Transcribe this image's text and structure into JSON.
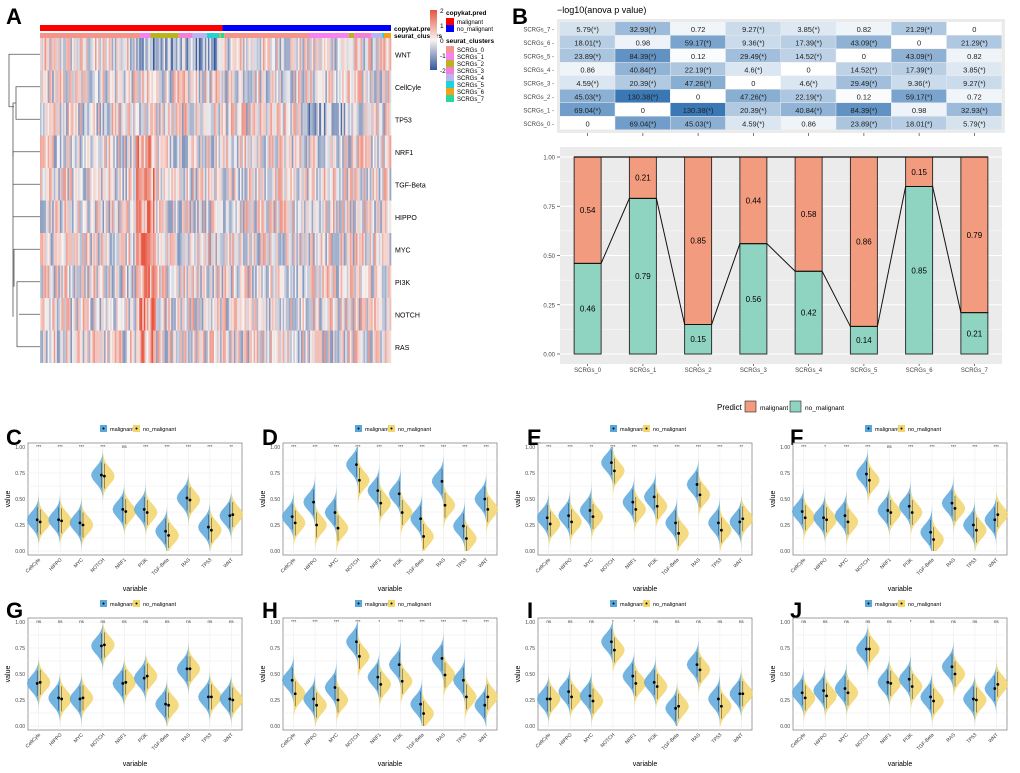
{
  "panels": {
    "A": "A",
    "B": "B",
    "C": "C",
    "D": "D",
    "E": "E",
    "F": "F",
    "G": "G",
    "H": "H",
    "I": "I",
    "J": "J"
  },
  "heatmap": {
    "rows": [
      "WNT",
      "CellCyle",
      "TP53",
      "NRF1",
      "TGF-Beta",
      "HIPPO",
      "MYC",
      "PI3K",
      "NOTCH",
      "RAS"
    ],
    "annotation_labels": [
      "copykat.pred",
      "seurat_clusters"
    ],
    "scale": {
      "max": 2,
      "min": -2,
      "ticks": [
        "2",
        "1",
        "0",
        "-1",
        "-2"
      ]
    },
    "legend_copykat_title": "copykat.pred",
    "legend_copykat": [
      {
        "label": "malignant",
        "color": "#ff0000"
      },
      {
        "label": "no_malignant",
        "color": "#0000ff"
      }
    ],
    "legend_clusters_title": "seurat_clusters",
    "legend_clusters": [
      {
        "label": "SCRGs_0",
        "color": "#f4948a"
      },
      {
        "label": "SCRGs_1",
        "color": "#f781f1"
      },
      {
        "label": "SCRGs_2",
        "color": "#b9b41c"
      },
      {
        "label": "SCRGs_3",
        "color": "#f47fd6"
      },
      {
        "label": "SCRGs_4",
        "color": "#b9b5f0"
      },
      {
        "label": "SCRGs_5",
        "color": "#1fd3d6"
      },
      {
        "label": "SCRGs_6",
        "color": "#f2a218"
      },
      {
        "label": "SCRGs_7",
        "color": "#25d9a0"
      }
    ],
    "copykat_split": 0.52,
    "cluster_segments": [
      {
        "cluster": 0,
        "start": 0.0,
        "end": 0.285
      },
      {
        "cluster": 1,
        "start": 0.285,
        "end": 0.315
      },
      {
        "cluster": 2,
        "start": 0.315,
        "end": 0.395
      },
      {
        "cluster": 3,
        "start": 0.395,
        "end": 0.435
      },
      {
        "cluster": 4,
        "start": 0.435,
        "end": 0.475
      },
      {
        "cluster": 5,
        "start": 0.475,
        "end": 0.51
      },
      {
        "cluster": 6,
        "start": 0.51,
        "end": 0.515
      },
      {
        "cluster": 7,
        "start": 0.515,
        "end": 0.525
      },
      {
        "cluster": 0,
        "start": 0.525,
        "end": 0.765
      },
      {
        "cluster": 1,
        "start": 0.765,
        "end": 0.88
      },
      {
        "cluster": 2,
        "start": 0.88,
        "end": 0.895
      },
      {
        "cluster": 3,
        "start": 0.895,
        "end": 0.945
      },
      {
        "cluster": 4,
        "start": 0.945,
        "end": 0.975
      },
      {
        "cluster": 5,
        "start": 0.975,
        "end": 0.98
      },
      {
        "cluster": 6,
        "start": 0.98,
        "end": 1.0
      }
    ]
  },
  "chart_data": [
    {
      "id": "B-heatmap",
      "type": "heatmap",
      "title": "−log10(anova p value)",
      "rows": [
        "SCRGs_7",
        "SCRGs_6",
        "SCRGs_5",
        "SCRGs_4",
        "SCRGs_3",
        "SCRGs_2",
        "SCRGs_1",
        "SCRGs_0"
      ],
      "columns": [
        "SCRGs_0",
        "SCRGs_1",
        "SCRGs_2",
        "SCRGs_3",
        "SCRGs_4",
        "SCRGs_5",
        "SCRGs_6",
        "SCRGs_7"
      ],
      "values": [
        [
          5.79,
          32.93,
          0.72,
          9.27,
          3.85,
          0.82,
          21.29,
          0
        ],
        [
          18.01,
          0.98,
          59.17,
          9.36,
          17.39,
          43.09,
          0,
          21.29
        ],
        [
          23.89,
          84.39,
          0.12,
          29.49,
          14.52,
          0,
          43.09,
          0.82
        ],
        [
          0.86,
          40.84,
          22.19,
          4.6,
          0,
          14.52,
          17.39,
          3.85
        ],
        [
          4.59,
          20.39,
          47.26,
          0,
          4.6,
          29.49,
          9.36,
          9.27
        ],
        [
          45.03,
          130.38,
          0,
          47.26,
          22.19,
          0.12,
          59.17,
          0.72
        ],
        [
          69.04,
          0,
          130.38,
          20.39,
          40.84,
          84.39,
          0.98,
          32.93
        ],
        [
          0,
          69.04,
          45.03,
          4.59,
          0.86,
          23.89,
          18.01,
          5.79
        ]
      ],
      "labels": [
        [
          "5.79(*)",
          "32.93(*)",
          "0.72",
          "9.27(*)",
          "3.85(*)",
          "0.82",
          "21.29(*)",
          "0"
        ],
        [
          "18.01(*)",
          "0.98",
          "59.17(*)",
          "9.36(*)",
          "17.39(*)",
          "43.09(*)",
          "0",
          "21.29(*)"
        ],
        [
          "23.89(*)",
          "84.39(*)",
          "0.12",
          "29.49(*)",
          "14.52(*)",
          "0",
          "43.09(*)",
          "0.82"
        ],
        [
          "0.86",
          "40.84(*)",
          "22.19(*)",
          "4.6(*)",
          "0",
          "14.52(*)",
          "17.39(*)",
          "3.85(*)"
        ],
        [
          "4.59(*)",
          "20.39(*)",
          "47.26(*)",
          "0",
          "4.6(*)",
          "29.49(*)",
          "9.36(*)",
          "9.27(*)"
        ],
        [
          "45.03(*)",
          "130.38(*)",
          "0",
          "47.26(*)",
          "22.19(*)",
          "0.12",
          "59.17(*)",
          "0.72"
        ],
        [
          "69.04(*)",
          "0",
          "130.38(*)",
          "20.39(*)",
          "40.84(*)",
          "84.39(*)",
          "0.98",
          "32.93(*)"
        ],
        [
          "0",
          "69.04(*)",
          "45.03(*)",
          "4.59(*)",
          "0.86",
          "23.89(*)",
          "18.01(*)",
          "5.79(*)"
        ]
      ],
      "color_low": "#ffffff",
      "color_high": "#3a78b5",
      "vmax": 130.38
    },
    {
      "id": "B-stacked-bar",
      "type": "bar",
      "stacked": true,
      "categories": [
        "SCRGs_0",
        "SCRGs_1",
        "SCRGs_2",
        "SCRGs_3",
        "SCRGs_4",
        "SCRGs_5",
        "SCRGs_6",
        "SCRGs_7"
      ],
      "series": [
        {
          "name": "no_malignant",
          "color": "#8fd3c1",
          "values": [
            0.46,
            0.79,
            0.15,
            0.56,
            0.42,
            0.14,
            0.85,
            0.21
          ]
        },
        {
          "name": "malignant",
          "color": "#f29b7e",
          "values": [
            0.54,
            0.21,
            0.85,
            0.44,
            0.58,
            0.86,
            0.15,
            0.79
          ]
        }
      ],
      "yticks": [
        "0.00",
        "0.25",
        "0.50",
        "0.75",
        "1.00"
      ],
      "ylim": [
        0,
        1
      ],
      "legend_title": "Predict",
      "legend_position": "bottom",
      "grid": true,
      "xlabel": "",
      "ylabel": ""
    },
    {
      "id": "C",
      "type": "violin",
      "xlabel": "variable",
      "ylabel": "value",
      "categories": [
        "CellCyle",
        "HIPPO",
        "MYC",
        "NOTCH",
        "NRF1",
        "PI3K",
        "TGF-Beta",
        "RAS",
        "TP53",
        "WNT"
      ],
      "significance": [
        "***",
        "***",
        "***",
        "***",
        "ns",
        "***",
        "***",
        "***",
        "***",
        "**"
      ],
      "series": [
        {
          "name": "malignant",
          "color": "#5aa7dc",
          "medians": [
            0.3,
            0.3,
            0.27,
            0.73,
            0.4,
            0.4,
            0.19,
            0.51,
            0.23,
            0.34
          ]
        },
        {
          "name": "no_malignant",
          "color": "#f2d56b",
          "medians": [
            0.28,
            0.29,
            0.25,
            0.72,
            0.38,
            0.37,
            0.15,
            0.49,
            0.2,
            0.35
          ]
        }
      ],
      "yticks": [
        "0.00",
        "0.25",
        "0.50",
        "0.75",
        "1.00"
      ],
      "ylim": [
        0,
        1
      ]
    },
    {
      "id": "D",
      "type": "violin",
      "xlabel": "variable",
      "ylabel": "value",
      "categories": [
        "CellCyle",
        "HIPPO",
        "MYC",
        "NOTCH",
        "NRF1",
        "PI3K",
        "TGF-Beta",
        "RAS",
        "TP53",
        "WNT"
      ],
      "significance": [
        "***",
        "***",
        "***",
        "***",
        "***",
        "***",
        "***",
        "***",
        "***",
        "***"
      ],
      "series": [
        {
          "name": "malignant",
          "color": "#5aa7dc",
          "medians": [
            0.33,
            0.47,
            0.37,
            0.83,
            0.58,
            0.55,
            0.31,
            0.67,
            0.24,
            0.5
          ]
        },
        {
          "name": "no_malignant",
          "color": "#f2d56b",
          "medians": [
            0.27,
            0.25,
            0.22,
            0.68,
            0.46,
            0.37,
            0.14,
            0.44,
            0.12,
            0.4
          ]
        }
      ],
      "yticks": [
        "0.00",
        "0.25",
        "0.50",
        "0.75",
        "1.00"
      ],
      "ylim": [
        0,
        1
      ]
    },
    {
      "id": "E",
      "type": "violin",
      "xlabel": "variable",
      "ylabel": "value",
      "categories": [
        "CellCyle",
        "HIPPO",
        "MYC",
        "NOTCH",
        "NRF1",
        "PI3K",
        "TGF-Beta",
        "RAS",
        "TP53",
        "WNT"
      ],
      "significance": [
        "***",
        "***",
        "**",
        "***",
        "***",
        "***",
        "***",
        "***",
        "***",
        "**"
      ],
      "series": [
        {
          "name": "malignant",
          "color": "#5aa7dc",
          "medians": [
            0.32,
            0.34,
            0.39,
            0.85,
            0.47,
            0.52,
            0.27,
            0.64,
            0.27,
            0.28
          ]
        },
        {
          "name": "no_malignant",
          "color": "#f2d56b",
          "medians": [
            0.26,
            0.28,
            0.33,
            0.77,
            0.4,
            0.43,
            0.17,
            0.54,
            0.2,
            0.31
          ]
        }
      ],
      "yticks": [
        "0.00",
        "0.25",
        "0.50",
        "0.75",
        "1.00"
      ],
      "ylim": [
        0,
        1
      ]
    },
    {
      "id": "F",
      "type": "violin",
      "xlabel": "variable",
      "ylabel": "value",
      "categories": [
        "CellCyle",
        "HIPPO",
        "MYC",
        "NOTCH",
        "NRF1",
        "PI3K",
        "TGF-Beta",
        "RAS",
        "TP53",
        "WNT"
      ],
      "significance": [
        "***",
        "*",
        "***",
        "***",
        "ns",
        "***",
        "***",
        "***",
        "***",
        "***"
      ],
      "series": [
        {
          "name": "malignant",
          "color": "#5aa7dc",
          "medians": [
            0.38,
            0.32,
            0.34,
            0.74,
            0.39,
            0.43,
            0.18,
            0.46,
            0.25,
            0.3
          ]
        },
        {
          "name": "no_malignant",
          "color": "#f2d56b",
          "medians": [
            0.32,
            0.3,
            0.28,
            0.68,
            0.37,
            0.37,
            0.11,
            0.41,
            0.2,
            0.35
          ]
        }
      ],
      "yticks": [
        "0.00",
        "0.25",
        "0.50",
        "0.75",
        "1.00"
      ],
      "ylim": [
        0,
        1
      ]
    },
    {
      "id": "G",
      "type": "violin",
      "xlabel": "variable",
      "ylabel": "value",
      "categories": [
        "CellCyle",
        "HIPPO",
        "MYC",
        "NOTCH",
        "NRF1",
        "PI3K",
        "TGF-Beta",
        "RAS",
        "TP53",
        "WNT"
      ],
      "significance": [
        "ns",
        "ns",
        "ns",
        "ns",
        "ns",
        "ns",
        "ns",
        "ns",
        "ns",
        "ns"
      ],
      "series": [
        {
          "name": "malignant",
          "color": "#5aa7dc",
          "medians": [
            0.41,
            0.27,
            0.26,
            0.77,
            0.41,
            0.46,
            0.21,
            0.55,
            0.28,
            0.26
          ]
        },
        {
          "name": "no_malignant",
          "color": "#f2d56b",
          "medians": [
            0.42,
            0.26,
            0.27,
            0.78,
            0.42,
            0.48,
            0.2,
            0.55,
            0.28,
            0.25
          ]
        }
      ],
      "yticks": [
        "0.00",
        "0.25",
        "0.50",
        "0.75",
        "1.00"
      ],
      "ylim": [
        0,
        1
      ]
    },
    {
      "id": "H",
      "type": "violin",
      "xlabel": "variable",
      "ylabel": "value",
      "categories": [
        "CellCyle",
        "HIPPO",
        "MYC",
        "NOTCH",
        "NRF1",
        "PI3K",
        "TGF-Beta",
        "RAS",
        "TP53",
        "WNT"
      ],
      "significance": [
        "***",
        "***",
        "***",
        "***",
        "*",
        "***",
        "***",
        "***",
        "***",
        "***"
      ],
      "series": [
        {
          "name": "malignant",
          "color": "#5aa7dc",
          "medians": [
            0.44,
            0.26,
            0.37,
            0.81,
            0.47,
            0.59,
            0.21,
            0.65,
            0.44,
            0.2
          ]
        },
        {
          "name": "no_malignant",
          "color": "#f2d56b",
          "medians": [
            0.31,
            0.2,
            0.25,
            0.67,
            0.4,
            0.43,
            0.12,
            0.49,
            0.28,
            0.28
          ]
        }
      ],
      "yticks": [
        "0.00",
        "0.25",
        "0.50",
        "0.75",
        "1.00"
      ],
      "ylim": [
        0,
        1
      ]
    },
    {
      "id": "I",
      "type": "violin",
      "xlabel": "variable",
      "ylabel": "value",
      "categories": [
        "CellCyle",
        "HIPPO",
        "MYC",
        "NOTCH",
        "NRF1",
        "PI3K",
        "TGF-Beta",
        "RAS",
        "TP53",
        "WNT"
      ],
      "significance": [
        "ns",
        "ns",
        "ns",
        "*",
        "*",
        "ns",
        "ns",
        "ns",
        "ns",
        "ns"
      ],
      "series": [
        {
          "name": "malignant",
          "color": "#5aa7dc",
          "medians": [
            0.26,
            0.33,
            0.29,
            0.81,
            0.48,
            0.42,
            0.17,
            0.59,
            0.26,
            0.31
          ]
        },
        {
          "name": "no_malignant",
          "color": "#f2d56b",
          "medians": [
            0.26,
            0.28,
            0.24,
            0.73,
            0.41,
            0.38,
            0.19,
            0.54,
            0.19,
            0.31
          ]
        }
      ],
      "yticks": [
        "0.00",
        "0.25",
        "0.50",
        "0.75",
        "1.00"
      ],
      "ylim": [
        0,
        1
      ]
    },
    {
      "id": "J",
      "type": "violin",
      "xlabel": "variable",
      "ylabel": "value",
      "categories": [
        "CellCyle",
        "HIPPO",
        "MYC",
        "NOTCH",
        "NRF1",
        "PI3K",
        "TGF-Beta",
        "RAS",
        "TP53",
        "WNT"
      ],
      "significance": [
        "ns",
        "ns",
        "ns",
        "ns",
        "ns",
        "*",
        "ns",
        "ns",
        "ns",
        "ns"
      ],
      "series": [
        {
          "name": "malignant",
          "color": "#5aa7dc",
          "medians": [
            0.32,
            0.34,
            0.36,
            0.74,
            0.42,
            0.45,
            0.28,
            0.57,
            0.26,
            0.36
          ]
        },
        {
          "name": "no_malignant",
          "color": "#f2d56b",
          "medians": [
            0.27,
            0.29,
            0.32,
            0.74,
            0.41,
            0.38,
            0.24,
            0.5,
            0.25,
            0.4
          ]
        }
      ],
      "yticks": [
        "0.00",
        "0.25",
        "0.50",
        "0.75",
        "1.00"
      ],
      "ylim": [
        0,
        1
      ]
    }
  ],
  "violin_legend": {
    "malignant": "malignant",
    "no_malignant": "no_malignant"
  }
}
